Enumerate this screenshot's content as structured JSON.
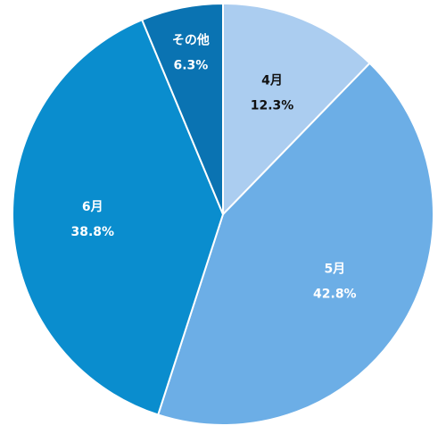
{
  "chart_data": {
    "type": "pie",
    "categories": [
      "4月",
      "5月",
      "6月",
      "その他"
    ],
    "values": [
      12.3,
      42.8,
      38.8,
      6.3
    ],
    "value_labels": [
      "12.3%",
      "42.8%",
      "38.8%",
      "6.3%"
    ],
    "colors": [
      "#abcdf0",
      "#6caee6",
      "#0a8dce",
      "#0a73b2"
    ]
  }
}
